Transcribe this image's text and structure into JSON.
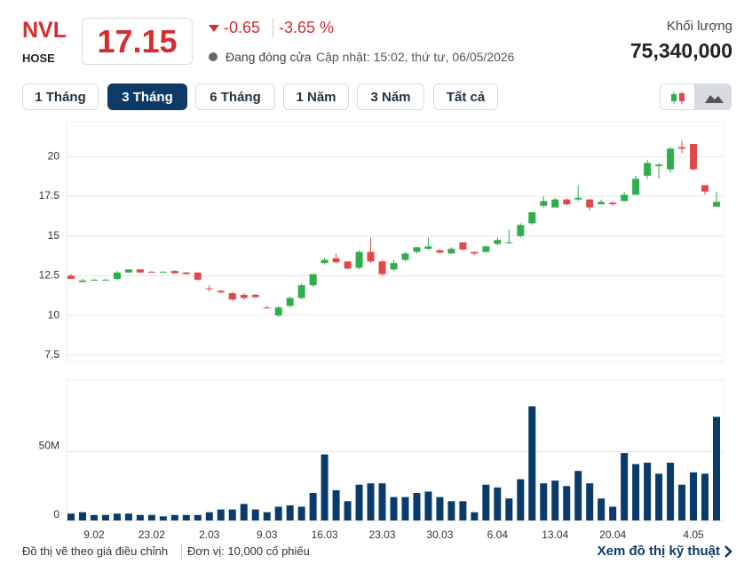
{
  "header": {
    "symbol": "NVL",
    "exchange": "HOSE",
    "price": "17.15",
    "change": "-0.65",
    "change_pct": "-3.65 %",
    "status": "Đang đóng cửa",
    "updated": "Cập nhật: 15:02, thứ tư, 06/05/2026",
    "volume_label": "Khối lượng",
    "volume": "75,340,000"
  },
  "tabs": [
    "1 Tháng",
    "3 Tháng",
    "6 Tháng",
    "1 Năm",
    "3 Năm",
    "Tất cả"
  ],
  "active_tab": 1,
  "chart_data": {
    "type": "candlestick",
    "categories": [
      null,
      null,
      "9.02",
      null,
      null,
      null,
      null,
      "23.02",
      null,
      null,
      null,
      null,
      "2.03",
      null,
      null,
      null,
      null,
      "9.03",
      null,
      null,
      null,
      null,
      "16.03",
      null,
      null,
      null,
      null,
      "23.03",
      null,
      null,
      null,
      null,
      "30.03",
      null,
      null,
      null,
      null,
      "6.04",
      null,
      null,
      null,
      null,
      "13.04",
      null,
      null,
      null,
      null,
      "20.04",
      null,
      null,
      null,
      null,
      null,
      null,
      "4.05",
      null,
      null
    ],
    "open": [
      12.5,
      12.1,
      12.2,
      12.2,
      12.3,
      12.7,
      12.9,
      12.75,
      12.7,
      12.8,
      12.7,
      12.7,
      11.7,
      11.55,
      11.4,
      11.3,
      11.3,
      10.5,
      10.0,
      10.6,
      11.1,
      11.9,
      13.3,
      13.6,
      13.4,
      13.0,
      14.0,
      13.4,
      12.9,
      13.5,
      14.0,
      14.2,
      14.1,
      13.9,
      14.6,
      14.0,
      14.0,
      14.5,
      14.55,
      15.0,
      15.8,
      16.9,
      16.8,
      17.3,
      17.3,
      17.3,
      17.0,
      17.1,
      17.2,
      17.6,
      18.8,
      19.4,
      19.2,
      20.6,
      20.8,
      18.2,
      16.85
    ],
    "high": [
      12.6,
      12.3,
      12.3,
      12.3,
      12.8,
      12.9,
      12.9,
      12.8,
      12.8,
      12.85,
      12.75,
      12.7,
      11.9,
      11.6,
      11.5,
      11.4,
      11.35,
      10.6,
      10.6,
      11.2,
      12.0,
      12.6,
      13.6,
      13.9,
      13.4,
      14.1,
      14.9,
      13.5,
      13.5,
      14.0,
      14.3,
      14.9,
      14.2,
      14.3,
      14.6,
      14.0,
      14.4,
      14.9,
      15.4,
      15.8,
      16.5,
      17.5,
      17.4,
      17.4,
      18.2,
      17.35,
      17.3,
      17.2,
      17.8,
      18.8,
      19.8,
      19.6,
      20.6,
      21.0,
      20.8,
      18.2,
      17.8
    ],
    "low": [
      12.3,
      12.1,
      12.2,
      12.2,
      12.2,
      12.7,
      12.7,
      12.7,
      12.7,
      12.65,
      12.6,
      12.2,
      11.5,
      11.4,
      10.9,
      11.0,
      11.1,
      10.45,
      9.9,
      10.5,
      11.0,
      11.8,
      13.2,
      13.3,
      12.9,
      12.9,
      13.3,
      12.5,
      12.8,
      13.4,
      13.9,
      14.1,
      13.9,
      13.9,
      14.1,
      13.8,
      13.95,
      14.4,
      14.5,
      14.9,
      15.7,
      16.8,
      16.8,
      16.9,
      17.2,
      16.6,
      17.0,
      16.9,
      17.2,
      17.6,
      18.6,
      18.6,
      19.0,
      20.2,
      19.1,
      17.6,
      16.85
    ],
    "close": [
      12.3,
      12.2,
      12.25,
      12.25,
      12.7,
      12.9,
      12.7,
      12.7,
      12.75,
      12.65,
      12.6,
      12.25,
      11.65,
      11.45,
      11.0,
      11.1,
      11.15,
      10.45,
      10.5,
      11.1,
      11.9,
      12.6,
      13.5,
      13.35,
      12.95,
      14.0,
      13.4,
      12.6,
      13.3,
      13.9,
      14.3,
      14.35,
      13.95,
      14.2,
      14.15,
      13.9,
      14.35,
      14.75,
      14.6,
      15.7,
      16.5,
      17.2,
      17.3,
      17.0,
      17.4,
      16.8,
      17.15,
      17.0,
      17.6,
      18.6,
      19.6,
      19.5,
      20.5,
      20.5,
      19.2,
      17.8,
      17.15
    ],
    "volume": [
      5000000,
      6000000,
      4000000,
      4000000,
      5000000,
      5000000,
      4000000,
      4000000,
      3000000,
      4000000,
      4000000,
      4000000,
      6000000,
      8000000,
      8000000,
      12000000,
      8000000,
      6000000,
      10000000,
      11000000,
      10000000,
      20000000,
      48000000,
      22000000,
      14000000,
      26000000,
      27000000,
      27000000,
      17000000,
      17000000,
      20000000,
      21000000,
      17000000,
      14000000,
      14000000,
      6000000,
      26000000,
      24000000,
      16000000,
      30000000,
      83000000,
      27000000,
      29000000,
      25000000,
      36000000,
      27000000,
      16000000,
      10000000,
      49000000,
      41000000,
      42000000,
      34000000,
      42000000,
      26000000,
      35000000,
      34000000,
      75340000
    ],
    "up_color": "#2fae4e",
    "down_color": "#e0484a",
    "volume_color": "#0a3b6a",
    "ylim": [
      7.1,
      22.2
    ],
    "yticks": [
      7.5,
      10,
      12.5,
      15,
      17.5,
      20
    ],
    "y2lim": [
      0,
      102000000
    ],
    "y2ticks": [
      0,
      {
        "value": 50000000,
        "label": "50M"
      }
    ],
    "grid": true
  },
  "footer": {
    "note": "Đồ thị vẽ theo giá điều chỉnh",
    "unit": "Đơn vị: 10,000 cổ phiếu",
    "link": "Xem đồ thị kỹ thuật"
  }
}
